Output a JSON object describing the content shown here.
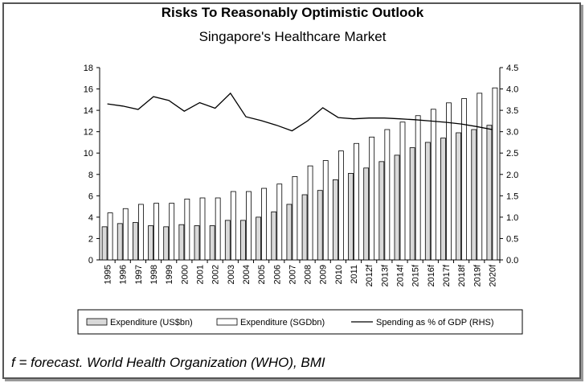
{
  "chart_data": {
    "type": "bar",
    "title": "Risks To Reasonably Optimistic Outlook",
    "subtitle": "Singapore's Healthcare Market",
    "categories": [
      "1995",
      "1996",
      "1997",
      "1998",
      "1999",
      "2000",
      "2001",
      "2002",
      "2003",
      "2004",
      "2005",
      "2006",
      "2007",
      "2008",
      "2009",
      "2010",
      "2011",
      "2012f",
      "2013f",
      "2014f",
      "2015f",
      "2016f",
      "2017f",
      "2018f",
      "2019f",
      "2020f"
    ],
    "series": [
      {
        "name": "Expenditure (US$bn)",
        "type": "bar",
        "axis": "left",
        "fill": "#d9d9d9",
        "values": [
          3.1,
          3.4,
          3.5,
          3.2,
          3.1,
          3.3,
          3.2,
          3.2,
          3.7,
          3.7,
          4.0,
          4.5,
          5.2,
          6.1,
          6.5,
          7.5,
          8.1,
          8.6,
          9.2,
          9.8,
          10.5,
          11.0,
          11.4,
          11.9,
          12.2,
          12.6
        ]
      },
      {
        "name": "Expenditure (SGDbn)",
        "type": "bar",
        "axis": "left",
        "fill": "#ffffff",
        "values": [
          4.4,
          4.8,
          5.2,
          5.3,
          5.3,
          5.7,
          5.8,
          5.8,
          6.4,
          6.4,
          6.7,
          7.1,
          7.8,
          8.8,
          9.3,
          10.2,
          10.9,
          11.5,
          12.2,
          12.9,
          13.5,
          14.1,
          14.7,
          15.1,
          15.6,
          16.1
        ]
      },
      {
        "name": "Spending as % of GDP (RHS)",
        "type": "line",
        "axis": "right",
        "stroke": "#000000",
        "values": [
          3.65,
          3.6,
          3.52,
          3.82,
          3.73,
          3.48,
          3.68,
          3.55,
          3.9,
          3.35,
          3.26,
          3.15,
          3.02,
          3.25,
          3.56,
          3.33,
          3.3,
          3.32,
          3.32,
          3.3,
          3.28,
          3.25,
          3.22,
          3.18,
          3.12,
          3.05
        ]
      }
    ],
    "yaxis_left": {
      "min": 0,
      "max": 18,
      "ticks": [
        "0",
        "2",
        "4",
        "6",
        "8",
        "10",
        "12",
        "14",
        "16",
        "18"
      ]
    },
    "yaxis_right": {
      "min": 0,
      "max": 4.5,
      "ticks": [
        "0.0",
        "0.5",
        "1.0",
        "1.5",
        "2.0",
        "2.5",
        "3.0",
        "3.5",
        "4.0",
        "4.5"
      ]
    },
    "grid": false,
    "legend": "bottom"
  },
  "footnote": "f = forecast. World Health Organization (WHO), BMI"
}
